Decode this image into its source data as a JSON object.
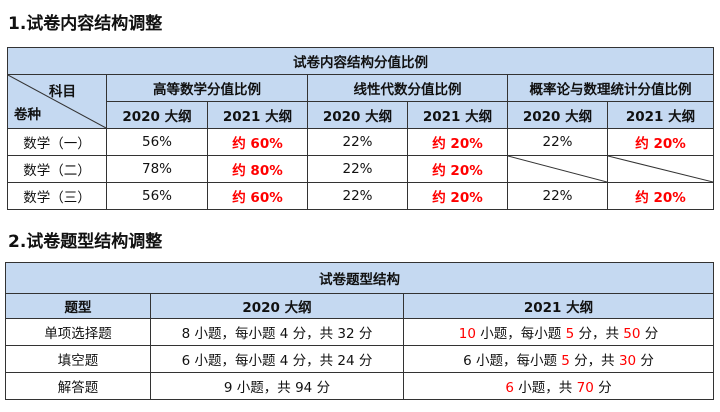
{
  "section1": {
    "title": "1.试卷内容结构调整",
    "table_title": "试卷内容结构分值比例",
    "corner_top": "科目",
    "corner_bottom": "卷种",
    "subjects": [
      "高等数学分值比例",
      "线性代数分值比例",
      "概率论与数理统计分值比例"
    ],
    "years": [
      "2020 大纲",
      "2021 大纲"
    ],
    "rows": [
      {
        "name": "数学（一）",
        "values": [
          "56%",
          "约 60%",
          "22%",
          "约 20%",
          "22%",
          "约 20%"
        ]
      },
      {
        "name": "数学（二）",
        "values": [
          "78%",
          "约 80%",
          "22%",
          "约 20%",
          "",
          ""
        ]
      },
      {
        "name": "数学（三）",
        "values": [
          "56%",
          "约 60%",
          "22%",
          "约 20%",
          "22%",
          "约 20%"
        ]
      }
    ]
  },
  "section2": {
    "title": "2.试卷题型结构调整",
    "table_title": "试卷题型结构",
    "headers": [
      "题型",
      "2020 大纲",
      "2021 大纲"
    ],
    "rows": [
      {
        "type": "单项选择题",
        "y2020": "8 小题，每小题 4 分，共 32 分",
        "y2021": [
          {
            "t": "10",
            "red": true
          },
          {
            "t": " 小题，每小题 "
          },
          {
            "t": "5",
            "red": true
          },
          {
            "t": " 分，共 "
          },
          {
            "t": "50",
            "red": true
          },
          {
            "t": " 分"
          }
        ]
      },
      {
        "type": "填空题",
        "y2020": "6 小题，每小题 4 分，共 24 分",
        "y2021": [
          {
            "t": "6 小题，每小题 "
          },
          {
            "t": "5",
            "red": true
          },
          {
            "t": " 分，共 "
          },
          {
            "t": "30",
            "red": true
          },
          {
            "t": " 分"
          }
        ]
      },
      {
        "type": "解答题",
        "y2020": "9 小题，共 94 分",
        "y2021": [
          {
            "t": "6",
            "red": true
          },
          {
            "t": " 小题，共 "
          },
          {
            "t": "70",
            "red": true
          },
          {
            "t": " 分"
          }
        ]
      }
    ]
  },
  "colors": {
    "header_bg": "#c5d9f1",
    "highlight": "#ff0000"
  }
}
